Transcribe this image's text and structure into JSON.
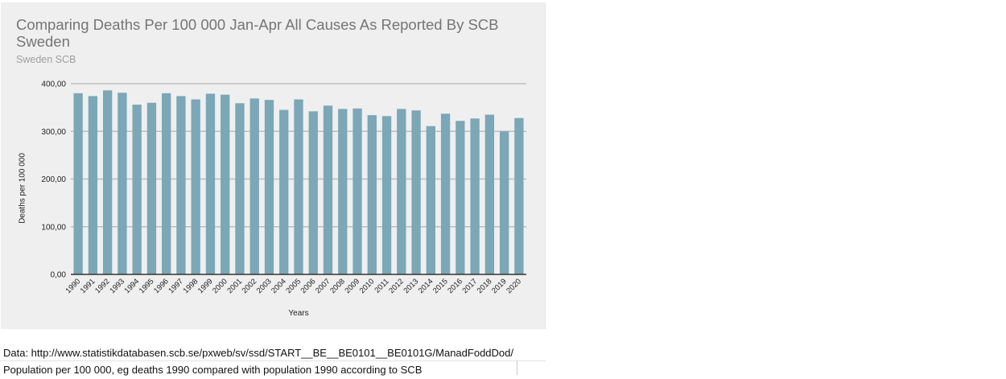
{
  "header": {
    "title": "Comparing Deaths Per 100 000 Jan-Apr All Causes As Reported By SCB Sweden",
    "subtitle": "Sweden SCB"
  },
  "footer": {
    "data_line": "Data: http://www.statistikdatabasen.scb.se/pxweb/sv/ssd/START__BE__BE0101__BE0101G/ManadFoddDod/",
    "note_line": "Population per 100 000, eg deaths 1990 compared with population 1990 according to SCB"
  },
  "chart_data": {
    "type": "bar",
    "title": "Comparing Deaths Per 100 000 Jan-Apr All Causes As Reported By SCB Sweden",
    "subtitle": "Sweden SCB",
    "xlabel": "Years",
    "ylabel": "Deaths per 100 000",
    "ylim": [
      0,
      400
    ],
    "yticks": [
      0,
      100,
      200,
      300,
      400
    ],
    "ytick_labels": [
      "0,00",
      "100,00",
      "200,00",
      "300,00",
      "400,00"
    ],
    "grid": true,
    "bar_color": "#7ba7b7",
    "categories": [
      "1990",
      "1991",
      "1992",
      "1993",
      "1994",
      "1995",
      "1996",
      "1997",
      "1998",
      "1999",
      "2000",
      "2001",
      "2002",
      "2003",
      "2004",
      "2005",
      "2006",
      "2007",
      "2008",
      "2009",
      "2010",
      "2011",
      "2012",
      "2013",
      "2014",
      "2015",
      "2016",
      "2017",
      "2018",
      "2019",
      "2020"
    ],
    "values": [
      380,
      374,
      386,
      381,
      356,
      360,
      380,
      374,
      367,
      379,
      377,
      359,
      369,
      366,
      345,
      367,
      342,
      354,
      347,
      348,
      334,
      332,
      347,
      344,
      311,
      337,
      322,
      327,
      335,
      300,
      328
    ]
  }
}
